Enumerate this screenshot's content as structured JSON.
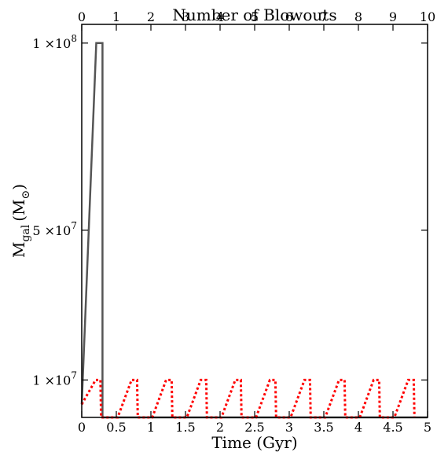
{
  "chart_data": {
    "type": "line",
    "xlabel": "Time (Gyr)",
    "ylabel": "M",
    "ylabel_sub": "gal",
    "ylabel_unit": "(M",
    "ylabel_unit_sub": "⊙",
    "ylabel_close": ")",
    "top_xlabel": "Number of Blowouts",
    "xlim": [
      0,
      5
    ],
    "ylim": [
      0,
      105000000
    ],
    "top_xlim": [
      0,
      10
    ],
    "x_ticks": [
      0,
      0.5,
      1,
      1.5,
      2,
      2.5,
      3,
      3.5,
      4,
      4.5,
      5
    ],
    "x_tick_labels": [
      "0",
      "0.5",
      "1",
      "1.5",
      "2",
      "2.5",
      "3",
      "3.5",
      "4",
      "4.5",
      "5"
    ],
    "top_x_ticks": [
      0,
      1,
      2,
      3,
      4,
      5,
      6,
      7,
      8,
      9,
      10
    ],
    "top_x_tick_labels": [
      "0",
      "1",
      "2",
      "3",
      "4",
      "5",
      "6",
      "7",
      "8",
      "9",
      "10"
    ],
    "y_ticks": [
      {
        "value": 10000000,
        "mantissa": "1 ×10",
        "exp": "7"
      },
      {
        "value": 50000000,
        "mantissa": "5 ×10",
        "exp": "7"
      },
      {
        "value": 100000000,
        "mantissa": "1 ×10",
        "exp": "8"
      }
    ],
    "grid": false,
    "series": [
      {
        "color": "#555555",
        "style": "solid",
        "x": [
          0,
          0.21,
          0.3,
          0.3,
          5
        ],
        "y": [
          3500000,
          100000000,
          100000000,
          0,
          0
        ]
      },
      {
        "color": "#ff0000",
        "style": "dotted",
        "x": [
          0,
          0.2,
          0.27,
          0.28,
          0.52,
          0.72,
          0.8,
          0.81,
          1.02,
          1.22,
          1.3,
          1.31,
          1.52,
          1.72,
          1.8,
          1.81,
          2.02,
          2.22,
          2.3,
          2.31,
          2.52,
          2.72,
          2.8,
          2.81,
          3.02,
          3.22,
          3.3,
          3.31,
          3.52,
          3.72,
          3.8,
          3.81,
          4.02,
          4.22,
          4.3,
          4.31,
          4.52,
          4.72,
          4.8,
          4.81
        ],
        "y": [
          3500000,
          10000000,
          10000000,
          0,
          0,
          10000000,
          10000000,
          0,
          0,
          10000000,
          10000000,
          0,
          0,
          10000000,
          10000000,
          0,
          0,
          10000000,
          10000000,
          0,
          0,
          10000000,
          10000000,
          0,
          0,
          10000000,
          10000000,
          0,
          0,
          10000000,
          10000000,
          0,
          0,
          10000000,
          10000000,
          0,
          0,
          10000000,
          10000000,
          0
        ]
      }
    ]
  }
}
